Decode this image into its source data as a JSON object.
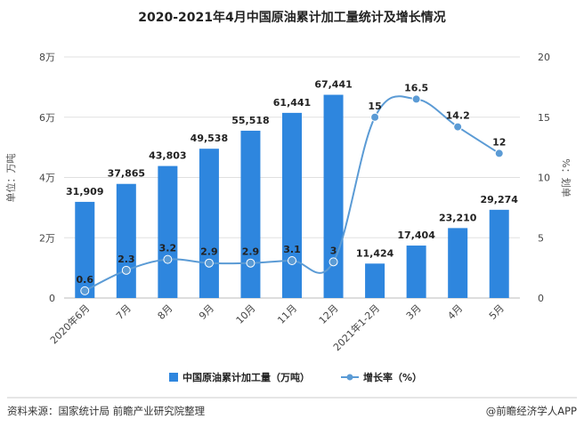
{
  "chart_data": {
    "type": "bar",
    "title": "2020-2021年4月中国原油累计加工量统计及增长情况",
    "categories": [
      "2020年6月",
      "7月",
      "8月",
      "9月",
      "10月",
      "11月",
      "12月",
      "2021年1-2月",
      "3月",
      "4月",
      "5月"
    ],
    "series": [
      {
        "name": "中国原油累计加工量（万吨）",
        "type": "bar",
        "axis": "left",
        "values": [
          31909,
          37865,
          43803,
          49538,
          55518,
          61441,
          67441,
          11424,
          17404,
          23210,
          29274
        ],
        "labels": [
          "31,909",
          "37,865",
          "43,803",
          "49,538",
          "55,518",
          "61,441",
          "67,441",
          "11,424",
          "17,404",
          "23,210",
          "29,274"
        ]
      },
      {
        "name": "增长率（%）",
        "type": "line",
        "axis": "right",
        "values": [
          0.6,
          2.3,
          3.2,
          2.9,
          2.9,
          3.1,
          3,
          15,
          16.5,
          14.2,
          12
        ],
        "labels": [
          "0.6",
          "2.3",
          "3.2",
          "2.9",
          "2.9",
          "3.1",
          "3",
          "15",
          "16.5",
          "14.2",
          "12"
        ]
      }
    ],
    "ylabel": "单位：万吨",
    "y2label": "%：划单",
    "ylim": [
      0,
      80000
    ],
    "y2lim": [
      0,
      20
    ],
    "yticks": [
      {
        "value": 0,
        "label": "0"
      },
      {
        "value": 20000,
        "label": "2万"
      },
      {
        "value": 40000,
        "label": "4万"
      },
      {
        "value": 60000,
        "label": "6万"
      },
      {
        "value": 80000,
        "label": "8万"
      }
    ],
    "y2ticks": [
      {
        "value": 0,
        "label": "0"
      },
      {
        "value": 5,
        "label": "5"
      },
      {
        "value": 10,
        "label": "10"
      },
      {
        "value": 15,
        "label": "15"
      },
      {
        "value": 20,
        "label": "20"
      }
    ],
    "grid": true,
    "legend": "bottom",
    "colors": {
      "bar": "#2e86de",
      "line": "#5b9bd5",
      "grid": "#e0e0e0"
    }
  },
  "footer": {
    "source": "资料来源：国家统计局 前瞻产业研究院整理",
    "brand": "@前瞻经济学人APP"
  }
}
